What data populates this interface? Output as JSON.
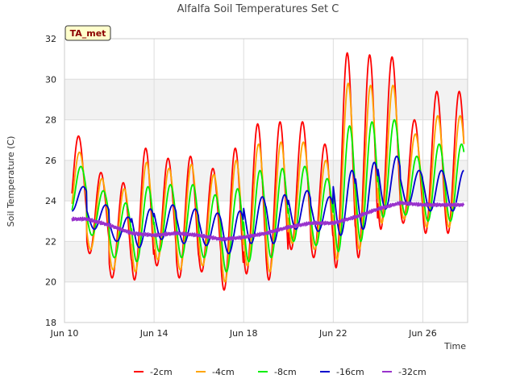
{
  "chart_data": {
    "type": "line",
    "title": "Alfalfa Soil Temperatures Set C",
    "xlabel": "Time",
    "ylabel": "Soil Temperature (C)",
    "badge": "TA_met",
    "xlim": [
      "2023-06-10",
      "2023-06-28"
    ],
    "ylim": [
      18,
      32
    ],
    "y_ticks": [
      18,
      20,
      22,
      24,
      26,
      28,
      30,
      32
    ],
    "x_ticks": [
      {
        "date": "2023-06-10",
        "label": "Jun 10"
      },
      {
        "date": "2023-06-14",
        "label": "Jun 14"
      },
      {
        "date": "2023-06-18",
        "label": "Jun 18"
      },
      {
        "date": "2023-06-22",
        "label": "Jun 22"
      },
      {
        "date": "2023-06-26",
        "label": "Jun 26"
      }
    ],
    "grid": true,
    "legend_position": "bottom",
    "start_date": "2023-06-10T08:00",
    "end_date": "2023-06-27T20:00",
    "series": [
      {
        "name": "-2cm",
        "color": "#ff0000",
        "daily_max": [
          27.2,
          25.4,
          24.9,
          26.6,
          26.1,
          26.2,
          25.6,
          26.6,
          27.8,
          27.9,
          27.9,
          26.8,
          31.3,
          31.2,
          31.1,
          28.0,
          29.4
        ],
        "daily_min": [
          22.7,
          21.4,
          20.2,
          20.1,
          20.8,
          20.2,
          20.5,
          19.6,
          20.4,
          20.1,
          21.6,
          21.2,
          20.7,
          21.2,
          22.6,
          22.9,
          22.4
        ]
      },
      {
        "name": "-4cm",
        "color": "#ffa500",
        "daily_max": [
          26.4,
          25.1,
          24.6,
          25.9,
          25.6,
          25.8,
          25.3,
          26.0,
          26.8,
          26.9,
          26.9,
          26.0,
          29.8,
          29.7,
          29.7,
          27.3,
          28.2
        ],
        "daily_min": [
          23.0,
          21.6,
          20.6,
          20.5,
          21.1,
          20.6,
          20.8,
          20.0,
          20.8,
          20.5,
          21.9,
          21.6,
          21.1,
          21.6,
          22.9,
          23.1,
          22.7
        ]
      },
      {
        "name": "-8cm",
        "color": "#00ee00",
        "daily_max": [
          25.7,
          24.5,
          23.9,
          24.7,
          24.8,
          24.8,
          24.3,
          24.6,
          25.5,
          25.6,
          25.7,
          25.1,
          27.7,
          27.9,
          28.0,
          26.2,
          26.8
        ],
        "daily_min": [
          23.3,
          22.3,
          21.2,
          21.0,
          21.5,
          21.2,
          21.2,
          20.5,
          21.0,
          21.2,
          22.0,
          21.8,
          21.5,
          22.0,
          23.2,
          23.3,
          23.0
        ]
      },
      {
        "name": "-16cm",
        "color": "#0000cd",
        "daily_max": [
          24.7,
          23.8,
          23.2,
          23.6,
          23.8,
          23.6,
          23.4,
          23.5,
          24.2,
          24.3,
          24.5,
          24.2,
          25.5,
          25.9,
          26.2,
          25.5,
          25.5
        ],
        "daily_min": [
          23.5,
          22.6,
          22.0,
          21.7,
          22.1,
          21.9,
          21.8,
          21.4,
          21.9,
          21.9,
          22.6,
          22.5,
          22.3,
          22.6,
          23.6,
          23.8,
          23.5
        ]
      },
      {
        "name": "-32cm",
        "color": "#9932cc",
        "daily_mean": [
          23.1,
          23.1,
          22.8,
          22.4,
          22.3,
          22.4,
          22.3,
          22.1,
          22.2,
          22.4,
          22.7,
          22.9,
          22.9,
          23.2,
          23.6,
          23.9,
          23.8
        ]
      }
    ]
  }
}
